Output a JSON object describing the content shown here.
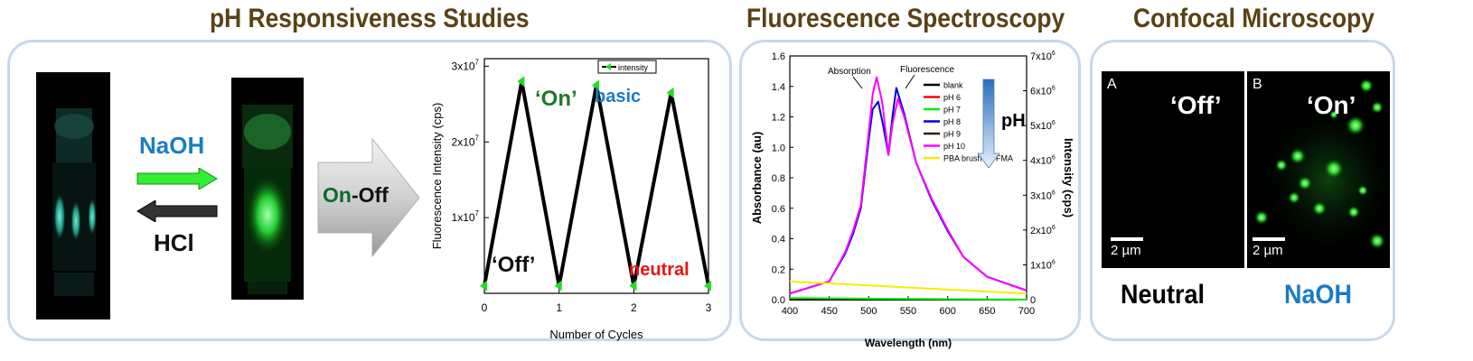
{
  "titles": {
    "ph": "pH Responsiveness Studies",
    "fluorescence": "Fluorescence Spectroscopy",
    "confocal": "Confocal Microscopy"
  },
  "vials": {
    "naoh_label": "NaOH",
    "hcl_label": "HCl",
    "arrow_on": "On",
    "arrow_off": "-Off"
  },
  "cycle_chart": {
    "legend": "intensity",
    "ylabel": "Fluorescence Intensity (cps)",
    "xlabel": "Number of Cycles",
    "yticks": [
      "1x10",
      "2x10",
      "3x10"
    ],
    "ytick_exp": "7",
    "xticks": [
      "0",
      "1",
      "2",
      "3"
    ],
    "on_label": "‘On’",
    "basic_label": "basic",
    "off_label": "‘Off’",
    "neutral_label": "neutral"
  },
  "spectra": {
    "xlabel": "Wavelength (nm)",
    "ylabel_left": "Absorbance (au)",
    "ylabel_right": "Intensity (cps)",
    "xticks": [
      "400",
      "450",
      "500",
      "550",
      "600",
      "650",
      "700"
    ],
    "yticks_left": [
      "0.0",
      "0.2",
      "0.4",
      "0.6",
      "0.8",
      "1.0",
      "1.2",
      "1.4",
      "1.6"
    ],
    "yticks_right": [
      "0",
      "1x10",
      "2x10",
      "3x10",
      "4x10",
      "5x10",
      "6x10",
      "7x10"
    ],
    "ytick_right_exp": "6",
    "annot_absorption": "Absorption",
    "annot_fluorescence": "Fluorescence",
    "ph_label": "pH",
    "legend": [
      {
        "label": "blank",
        "color": "#000000"
      },
      {
        "label": "pH 6",
        "color": "#ff0000"
      },
      {
        "label": "pH 7",
        "color": "#00ee00"
      },
      {
        "label": "pH 8",
        "color": "#0000dd"
      },
      {
        "label": "pH 9",
        "color": "#3a1a00"
      },
      {
        "label": "pH 10",
        "color": "#ff00ff"
      },
      {
        "label": "PBA brush-no FMA",
        "color": "#f0f000"
      }
    ]
  },
  "confocal": {
    "panel_a_letter": "A",
    "panel_b_letter": "B",
    "panel_a_state": "‘Off’",
    "panel_b_state": "‘On’",
    "scale_a": "2 µm",
    "scale_b": "2 µm",
    "caption_a": "Neutral",
    "caption_b": "NaOH"
  },
  "chart_data": [
    {
      "type": "line",
      "title": "",
      "xlabel": "Number of Cycles",
      "ylabel": "Fluorescence Intensity (cps)",
      "x": [
        0,
        0.5,
        1,
        1.5,
        2,
        2.5,
        3
      ],
      "series": [
        {
          "name": "intensity",
          "values": [
            1000000,
            28000000,
            1000000,
            27500000,
            1000000,
            26500000,
            1000000
          ]
        }
      ],
      "xlim": [
        0,
        3
      ],
      "ylim": [
        0,
        31000000
      ],
      "grid": false,
      "legend": "top-right"
    },
    {
      "type": "line",
      "title": "",
      "xlabel": "Wavelength (nm)",
      "ylabel": "Absorbance (au)",
      "ylabel_right": "Intensity (cps)",
      "xlim": [
        400,
        700
      ],
      "ylim": [
        0,
        1.6
      ],
      "ylim_right": [
        0,
        7000000
      ],
      "grid": false,
      "legend": "top-right",
      "series": [
        {
          "name": "blank",
          "x": [
            400,
            700
          ],
          "values": [
            0.0,
            0.0
          ]
        },
        {
          "name": "pH 8",
          "x": [
            400,
            450,
            470,
            480,
            490,
            500,
            505,
            512,
            518,
            525,
            530,
            535,
            545,
            560,
            580,
            600,
            620,
            650,
            700
          ],
          "values": [
            0.04,
            0.12,
            0.3,
            0.43,
            0.6,
            1.05,
            1.25,
            1.3,
            1.15,
            0.95,
            1.2,
            1.39,
            1.22,
            0.9,
            0.65,
            0.45,
            0.28,
            0.15,
            0.06
          ]
        },
        {
          "name": "pH 10",
          "x": [
            400,
            450,
            470,
            480,
            490,
            500,
            505,
            510,
            517,
            525,
            530,
            537,
            545,
            560,
            580,
            600,
            620,
            650,
            700
          ],
          "values": [
            0.04,
            0.12,
            0.31,
            0.45,
            0.62,
            1.1,
            1.35,
            1.46,
            1.3,
            0.95,
            1.15,
            1.32,
            1.2,
            0.9,
            0.66,
            0.46,
            0.28,
            0.15,
            0.06
          ]
        },
        {
          "name": "PBA brush-no FMA",
          "x": [
            400,
            700
          ],
          "values": [
            0.12,
            0.04
          ]
        },
        {
          "name": "pH 7",
          "x": [
            400,
            700
          ],
          "values": [
            0.01,
            0.0
          ]
        }
      ]
    }
  ]
}
